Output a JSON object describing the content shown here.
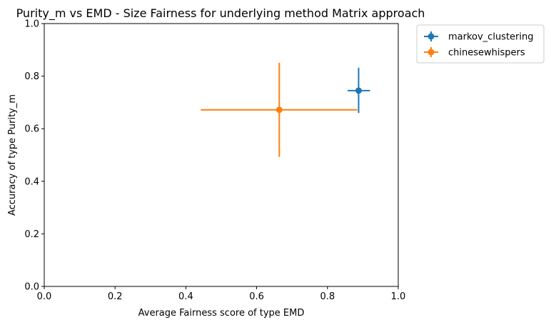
{
  "chart_data": {
    "type": "scatter",
    "title": "Purity_m vs EMD - Size Fairness for underlying method Matrix approach",
    "xlabel": "Average Fairness score of type EMD",
    "ylabel": "Accuracy of type Purity_m",
    "xlim": [
      0,
      1
    ],
    "ylim": [
      0,
      1
    ],
    "xticks": [
      "0.0",
      "0.2",
      "0.4",
      "0.6",
      "0.8",
      "1.0"
    ],
    "yticks": [
      "0.0",
      "0.2",
      "0.4",
      "0.6",
      "0.8",
      "1.0"
    ],
    "grid": false,
    "legend_position": "outside top-right",
    "series": [
      {
        "name": "markov_clustering",
        "color": "#1f77b4",
        "x": 0.888,
        "y": 0.745,
        "xerr": [
          0.857,
          0.92
        ],
        "yerr": [
          0.66,
          0.832
        ]
      },
      {
        "name": "chinesewhispers",
        "color": "#ff7f0e",
        "x": 0.664,
        "y": 0.672,
        "xerr": [
          0.442,
          0.884
        ],
        "yerr": [
          0.493,
          0.851
        ]
      }
    ]
  }
}
